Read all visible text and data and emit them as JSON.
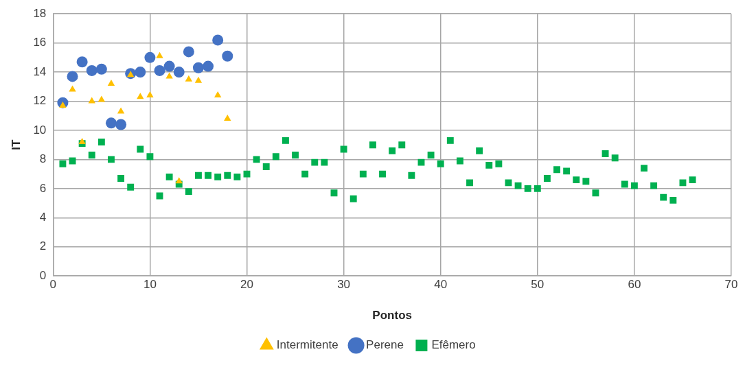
{
  "chart_data": {
    "type": "scatter",
    "xlabel": "Pontos",
    "ylabel": "IT",
    "xlim": [
      0,
      70
    ],
    "xticks": [
      0,
      10,
      20,
      30,
      40,
      50,
      60,
      70
    ],
    "ylim": [
      0,
      18
    ],
    "yticks": [
      0,
      2,
      4,
      6,
      8,
      10,
      12,
      14,
      16,
      18
    ],
    "grid": true,
    "legend": "bottom",
    "series": [
      {
        "name": "Intermitente",
        "color": "#ffc000",
        "marker": "triangle",
        "x": [
          1,
          2,
          3,
          4,
          5,
          6,
          7,
          8,
          9,
          10,
          11,
          12,
          13,
          14,
          15,
          17,
          18
        ],
        "values": [
          11.7,
          12.8,
          9.2,
          12.0,
          12.1,
          13.2,
          11.3,
          13.8,
          12.3,
          12.4,
          15.1,
          13.7,
          6.5,
          13.5,
          13.4,
          12.4,
          10.8
        ]
      },
      {
        "name": "Perene",
        "color": "#4472c4",
        "marker": "circle",
        "x": [
          1,
          2,
          3,
          4,
          5,
          6,
          7,
          8,
          9,
          10,
          11,
          12,
          13,
          14,
          15,
          16,
          17,
          18
        ],
        "values": [
          11.9,
          13.7,
          14.7,
          14.1,
          14.2,
          10.5,
          10.4,
          13.9,
          14.0,
          15.0,
          14.1,
          14.4,
          14.0,
          15.4,
          14.3,
          14.4,
          16.2,
          15.1
        ]
      },
      {
        "name": "Efêmero",
        "color": "#00b050",
        "marker": "square",
        "x": [
          1,
          2,
          3,
          4,
          5,
          6,
          7,
          8,
          9,
          10,
          11,
          12,
          13,
          14,
          15,
          16,
          17,
          18,
          19,
          20,
          21,
          22,
          23,
          24,
          25,
          26,
          27,
          28,
          29,
          30,
          31,
          32,
          33,
          34,
          35,
          36,
          37,
          38,
          39,
          40,
          41,
          42,
          43,
          44,
          45,
          46,
          47,
          48,
          49,
          50,
          51,
          52,
          53,
          54,
          55,
          56,
          57,
          58,
          59,
          60,
          61,
          62,
          63,
          64,
          65,
          66
        ],
        "values": [
          7.7,
          7.9,
          9.1,
          8.3,
          9.2,
          8.0,
          6.7,
          6.1,
          8.7,
          8.2,
          5.5,
          6.8,
          6.3,
          5.8,
          6.9,
          6.9,
          6.8,
          6.9,
          6.8,
          7.0,
          8.0,
          7.5,
          8.2,
          9.3,
          8.3,
          7.0,
          7.8,
          7.8,
          5.7,
          8.7,
          5.3,
          7.0,
          9.0,
          7.0,
          8.6,
          9.0,
          6.9,
          7.8,
          8.3,
          7.7,
          9.3,
          7.9,
          6.4,
          8.6,
          7.6,
          7.7,
          6.4,
          6.2,
          6.0,
          6.0,
          6.7,
          7.3,
          7.2,
          6.6,
          6.5,
          5.7,
          8.4,
          8.1,
          6.3,
          6.2,
          7.4,
          6.2,
          5.4,
          5.2,
          6.4,
          6.6
        ]
      }
    ]
  }
}
